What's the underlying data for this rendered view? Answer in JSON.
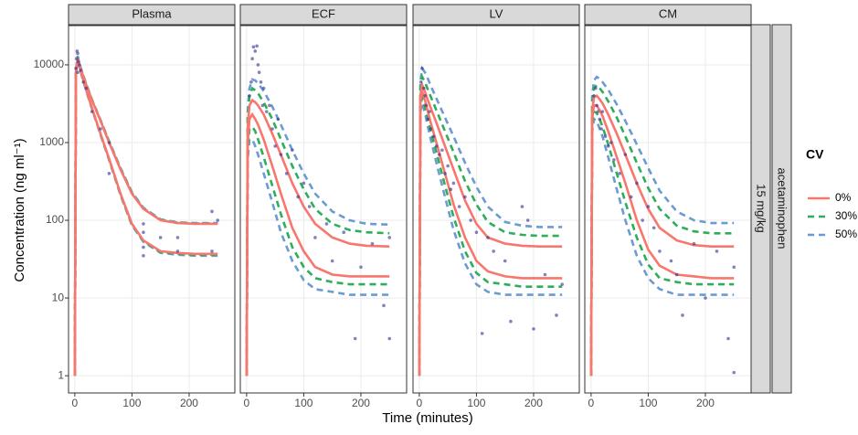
{
  "chart_data": {
    "type": "line",
    "x_label": "Time (minutes)",
    "y_label": "Concentration (ng ml⁻¹)",
    "strip_labels": [
      "15 mg/kg",
      "acetaminophen"
    ],
    "legend_title": "CV",
    "log_y": true,
    "grid": true,
    "point_color": "#2e2e8f",
    "x": [
      0,
      2,
      5,
      10,
      15,
      20,
      30,
      45,
      60,
      80,
      100,
      120,
      150,
      180,
      210,
      250
    ],
    "xlim": [
      -11,
      280
    ],
    "xticks": [
      0,
      100,
      200
    ],
    "ylim": [
      0.6,
      32000
    ],
    "yticks": [
      1,
      10,
      100,
      1000,
      10000
    ],
    "panels": [
      {
        "title": "Plasma",
        "points": {
          "x": [
            2,
            3,
            4,
            5,
            5,
            6,
            8,
            10,
            15,
            20,
            30,
            45,
            60,
            60,
            120,
            120,
            120,
            120,
            150,
            180,
            180,
            240,
            240,
            250
          ],
          "y": [
            9000,
            12000,
            15000,
            14000,
            8000,
            11000,
            10000,
            8500,
            6000,
            5000,
            2500,
            1500,
            400,
            1000,
            35,
            45,
            70,
            90,
            60,
            60,
            40,
            130,
            40,
            100
          ]
        }
      },
      {
        "title": "ECF",
        "points": {
          "x": [
            5,
            8,
            10,
            12,
            15,
            18,
            20,
            22,
            25,
            28,
            30,
            35,
            40,
            45,
            50,
            55,
            60,
            70,
            80,
            90,
            100,
            110,
            120,
            140,
            150,
            170,
            190,
            200,
            220,
            240,
            250,
            250
          ],
          "y": [
            4000,
            6000,
            12000,
            17000,
            15000,
            17500,
            10000,
            8000,
            6000,
            3000,
            5000,
            2500,
            3000,
            1500,
            900,
            2000,
            700,
            400,
            800,
            200,
            300,
            150,
            60,
            90,
            30,
            70,
            3,
            25,
            50,
            8,
            3,
            60
          ]
        }
      },
      {
        "title": "LV",
        "points": {
          "x": [
            3,
            5,
            8,
            10,
            12,
            15,
            18,
            20,
            25,
            30,
            35,
            40,
            45,
            50,
            55,
            60,
            70,
            80,
            90,
            100,
            110,
            120,
            130,
            150,
            160,
            180,
            190,
            200,
            220,
            240,
            250
          ],
          "y": [
            6000,
            9000,
            5000,
            4000,
            3000,
            2000,
            2500,
            1500,
            1200,
            900,
            700,
            800,
            400,
            500,
            250,
            300,
            150,
            200,
            100,
            70,
            3.5,
            60,
            40,
            30,
            5,
            150,
            100,
            4,
            20,
            6,
            15
          ]
        }
      },
      {
        "title": "CM",
        "points": {
          "x": [
            5,
            8,
            10,
            12,
            15,
            18,
            20,
            25,
            30,
            35,
            40,
            50,
            60,
            70,
            80,
            90,
            100,
            110,
            120,
            140,
            150,
            160,
            180,
            200,
            220,
            240,
            250,
            250
          ],
          "y": [
            4000,
            5000,
            3000,
            2500,
            2000,
            1500,
            2500,
            1200,
            900,
            1000,
            600,
            400,
            700,
            200,
            300,
            100,
            150,
            80,
            40,
            30,
            20,
            6,
            50,
            10,
            40,
            3,
            1.1,
            25
          ]
        }
      }
    ],
    "series": [
      {
        "name": "0%",
        "color": "#F8766D",
        "dash": "solid",
        "curves": [
          [
            [
              1,
              8000,
              12000,
              9000,
              7000,
              5500,
              3500,
              1900,
              1000,
              450,
              220,
              140,
              100,
              92,
              90,
              90
            ],
            [
              1,
              8000,
              12000,
              8500,
              6300,
              4700,
              2800,
              1300,
              620,
              220,
              90,
              55,
              40,
              38,
              37,
              37
            ]
          ],
          [
            [
              1,
              1500,
              3000,
              3500,
              3300,
              3000,
              2300,
              1300,
              700,
              300,
              150,
              90,
              60,
              50,
              47,
              46
            ],
            [
              1,
              1000,
              2000,
              2300,
              2000,
              1700,
              1100,
              500,
              220,
              80,
              40,
              25,
              20,
              19,
              19,
              19
            ]
          ],
          [
            [
              1,
              4000,
              5500,
              4500,
              3500,
              2800,
              1800,
              900,
              450,
              180,
              90,
              60,
              50,
              47,
              46,
              46
            ],
            [
              1,
              3500,
              4500,
              3500,
              2500,
              1800,
              1000,
              400,
              160,
              60,
              30,
              22,
              19,
              18,
              18,
              18
            ]
          ],
          [
            [
              1,
              2500,
              3800,
              4000,
              3600,
              3200,
              2300,
              1300,
              700,
              300,
              140,
              80,
              55,
              48,
              46,
              46
            ],
            [
              1,
              2000,
              3000,
              3000,
              2600,
              2200,
              1400,
              650,
              300,
              100,
              42,
              26,
              20,
              19,
              18,
              18
            ]
          ]
        ]
      },
      {
        "name": "30%",
        "color": "#2EAD5B",
        "dash": "dashed",
        "curves": [
          [
            [
              1,
              8200,
              12500,
              9200,
              7100,
              5600,
              3550,
              1930,
              1020,
              460,
              225,
              142,
              101,
              93,
              91,
              91
            ],
            [
              1,
              7900,
              11800,
              8400,
              6200,
              4650,
              2770,
              1280,
              610,
              215,
              88,
              54,
              39,
              37,
              36,
              36
            ]
          ],
          [
            [
              1,
              2000,
              4000,
              5000,
              4700,
              4300,
              3300,
              2000,
              1100,
              500,
              250,
              140,
              90,
              75,
              70,
              68
            ],
            [
              1,
              800,
              1500,
              1600,
              1400,
              1100,
              650,
              280,
              120,
              45,
              25,
              18,
              16,
              15,
              15,
              15
            ]
          ],
          [
            [
              1,
              5000,
              7000,
              6000,
              4800,
              3900,
              2600,
              1400,
              750,
              320,
              160,
              95,
              70,
              65,
              63,
              63
            ],
            [
              1,
              3000,
              3800,
              2900,
              2000,
              1400,
              750,
              280,
              110,
              40,
              21,
              16,
              15,
              14,
              14,
              14
            ]
          ],
          [
            [
              1,
              3200,
              5000,
              5500,
              5000,
              4500,
              3400,
              2100,
              1200,
              550,
              260,
              140,
              85,
              72,
              68,
              68
            ],
            [
              1,
              1700,
              2500,
              2400,
              2000,
              1600,
              950,
              400,
              170,
              60,
              27,
              18,
              16,
              15,
              15,
              15
            ]
          ]
        ]
      },
      {
        "name": "50%",
        "color": "#6C9BD2",
        "dash": "dashed",
        "curves": [
          [
            [
              1,
              8400,
              13000,
              9400,
              7200,
              5700,
              3600,
              1950,
              1040,
              470,
              230,
              145,
              103,
              94,
              92,
              92
            ],
            [
              1,
              7800,
              11500,
              8300,
              6100,
              4600,
              2740,
              1260,
              600,
              210,
              86,
              53,
              38,
              36,
              35,
              35
            ]
          ],
          [
            [
              1,
              2500,
              5000,
              6500,
              6300,
              5800,
              4600,
              2900,
              1700,
              800,
              400,
              220,
              130,
              100,
              90,
              88
            ],
            [
              1,
              600,
              1100,
              1100,
              900,
              700,
              400,
              170,
              70,
              30,
              17,
              13,
              12,
              11,
              11,
              11
            ]
          ],
          [
            [
              1,
              6000,
              9000,
              8000,
              6600,
              5400,
              3700,
              2100,
              1200,
              550,
              270,
              150,
              95,
              85,
              82,
              82
            ],
            [
              1,
              2500,
              3200,
              2400,
              1600,
              1100,
              550,
              200,
              75,
              28,
              15,
              12,
              11,
              11,
              11,
              11
            ]
          ],
          [
            [
              1,
              3800,
              6300,
              7000,
              6600,
              6000,
              4800,
              3100,
              1900,
              950,
              470,
              240,
              130,
              100,
              92,
              92
            ],
            [
              1,
              1400,
              2000,
              1900,
              1500,
              1200,
              650,
              250,
              100,
              35,
              18,
              13,
              11,
              11,
              11,
              11
            ]
          ]
        ]
      }
    ]
  }
}
